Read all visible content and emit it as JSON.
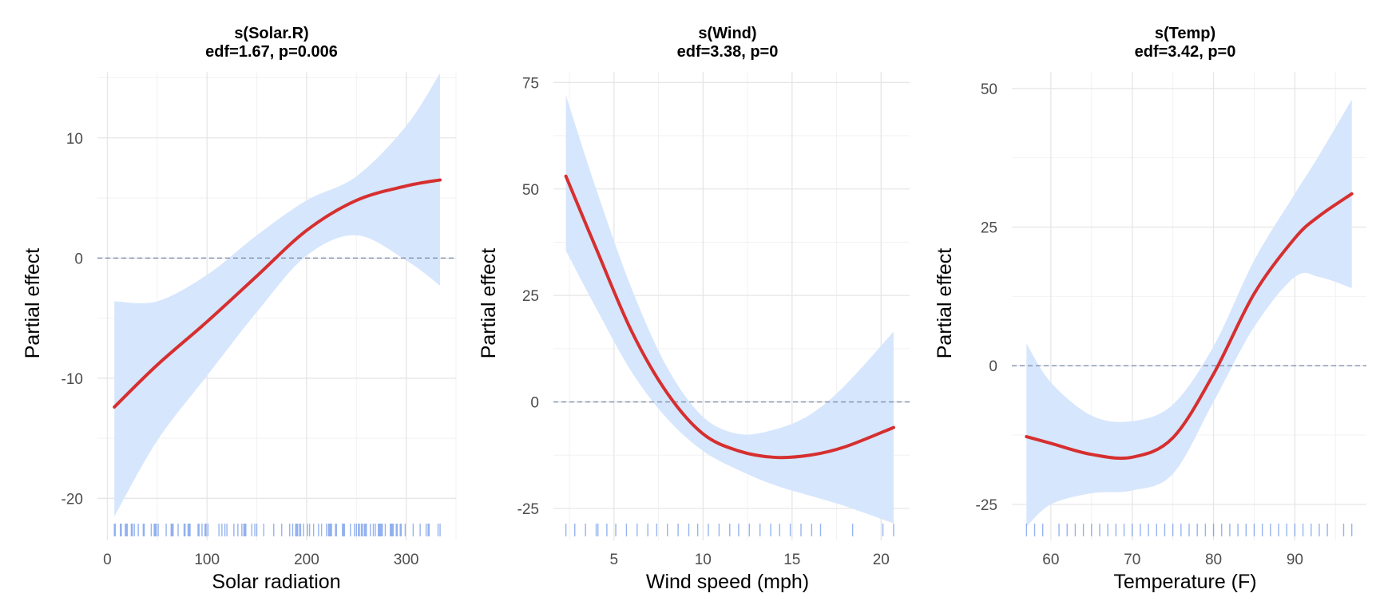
{
  "chart_data": [
    {
      "type": "line",
      "title": "s(Solar.R)",
      "subtitle": "edf=1.67, p=0.006",
      "xlabel": "Solar radiation",
      "ylabel": "Partial effect",
      "xlim": [
        -10,
        350
      ],
      "ylim": [
        -23.5,
        15.5
      ],
      "xticks": [
        0,
        100,
        200,
        300
      ],
      "xtick_labels": [
        "0",
        "100",
        "200",
        "300"
      ],
      "yticks": [
        -20,
        -10,
        0,
        10
      ],
      "ytick_labels": [
        "-20",
        "-10",
        "0",
        "10"
      ],
      "grid": true,
      "reference_line": 0,
      "fit": {
        "x": [
          7,
          50,
          100,
          150,
          200,
          250,
          300,
          334
        ],
        "y": [
          -12.4,
          -8.9,
          -5.3,
          -1.5,
          2.3,
          4.8,
          6.0,
          6.5
        ],
        "lower": [
          -21.5,
          -15.2,
          -9.8,
          -4.5,
          0.2,
          1.9,
          -0.2,
          -2.3
        ],
        "upper": [
          -3.6,
          -3.6,
          -1.4,
          1.9,
          4.8,
          6.8,
          11.0,
          15.4
        ]
      },
      "rug": [
        7,
        8,
        13,
        14,
        18,
        19,
        20,
        24,
        25,
        27,
        31,
        36,
        37,
        44,
        47,
        48,
        49,
        51,
        59,
        64,
        65,
        66,
        71,
        77,
        78,
        81,
        82,
        83,
        91,
        92,
        95,
        98,
        99,
        101,
        112,
        115,
        118,
        120,
        127,
        131,
        135,
        137,
        138,
        139,
        145,
        148,
        150,
        157,
        167,
        175,
        183,
        186,
        189,
        190,
        191,
        193,
        194,
        197,
        201,
        203,
        207,
        212,
        215,
        220,
        222,
        223,
        224,
        225,
        229,
        230,
        236,
        237,
        238,
        244,
        248,
        250,
        252,
        253,
        255,
        256,
        258,
        259,
        260,
        264,
        267,
        269,
        272,
        273,
        274,
        275,
        276,
        279,
        284,
        285,
        286,
        287,
        290,
        291,
        294,
        295,
        299,
        307,
        314,
        320,
        322,
        323,
        332,
        334
      ]
    },
    {
      "type": "line",
      "title": "s(Wind)",
      "subtitle": "edf=3.38, p=0",
      "xlabel": "Wind speed (mph)",
      "ylabel": "Partial effect",
      "xlim": [
        1.6,
        21.6
      ],
      "ylim": [
        -32.5,
        77.5
      ],
      "xticks": [
        5,
        10,
        15,
        20
      ],
      "xtick_labels": [
        "5",
        "10",
        "15",
        "20"
      ],
      "yticks": [
        -25,
        0,
        25,
        50,
        75
      ],
      "ytick_labels": [
        "-25",
        "0",
        "25",
        "50",
        "75"
      ],
      "grid": true,
      "reference_line": 0,
      "fit": {
        "x": [
          2.3,
          4,
          6,
          8,
          10,
          12,
          14,
          16,
          18,
          20.7
        ],
        "y": [
          53,
          36,
          16.5,
          2,
          -7.5,
          -11.5,
          -13,
          -12.5,
          -10.5,
          -6
        ],
        "lower": [
          35.5,
          22,
          7,
          -4,
          -11.5,
          -16,
          -19.5,
          -22,
          -24.5,
          -28.5
        ],
        "upper": [
          72,
          50,
          26.5,
          8,
          -3.5,
          -7.5,
          -6.5,
          -3,
          4,
          16.5
        ]
      },
      "rug": [
        2.3,
        2.8,
        3.4,
        4.0,
        4.1,
        4.6,
        5.1,
        5.7,
        6.3,
        6.9,
        7.4,
        8.0,
        8.6,
        9.2,
        9.7,
        10.3,
        10.9,
        11.5,
        12.0,
        12.6,
        13.2,
        13.8,
        14.3,
        14.9,
        15.5,
        16.1,
        16.6,
        18.4,
        20.1,
        20.7
      ]
    },
    {
      "type": "line",
      "title": "s(Temp)",
      "subtitle": "edf=3.42, p=0",
      "xlabel": "Temperature (F)",
      "ylabel": "Partial effect",
      "xlim": [
        55.2,
        98.8
      ],
      "ylim": [
        -31.5,
        53
      ],
      "xticks": [
        60,
        70,
        80,
        90
      ],
      "xtick_labels": [
        "60",
        "70",
        "80",
        "90"
      ],
      "yticks": [
        -25,
        0,
        25,
        50
      ],
      "ytick_labels": [
        "-25",
        "0",
        "25",
        "50"
      ],
      "grid": true,
      "reference_line": 0,
      "fit": {
        "x": [
          57,
          60,
          65,
          70,
          75,
          80,
          85,
          90,
          93,
          97
        ],
        "y": [
          -12.8,
          -14,
          -16,
          -16.5,
          -13,
          -1.5,
          13,
          23,
          27,
          31
        ],
        "lower": [
          -29,
          -25,
          -23,
          -22.5,
          -19.5,
          -6.5,
          7,
          16,
          16,
          14
        ],
        "upper": [
          4,
          -3,
          -9,
          -10,
          -7,
          3.5,
          19,
          31,
          38,
          48
        ]
      },
      "rug": [
        57,
        58,
        59,
        61,
        62,
        63,
        64,
        65,
        66,
        67,
        68,
        69,
        70,
        71,
        72,
        73,
        74,
        75,
        76,
        77,
        78,
        79,
        80,
        81,
        82,
        83,
        84,
        85,
        86,
        87,
        88,
        89,
        90,
        91,
        92,
        93,
        94,
        96,
        97
      ]
    }
  ]
}
